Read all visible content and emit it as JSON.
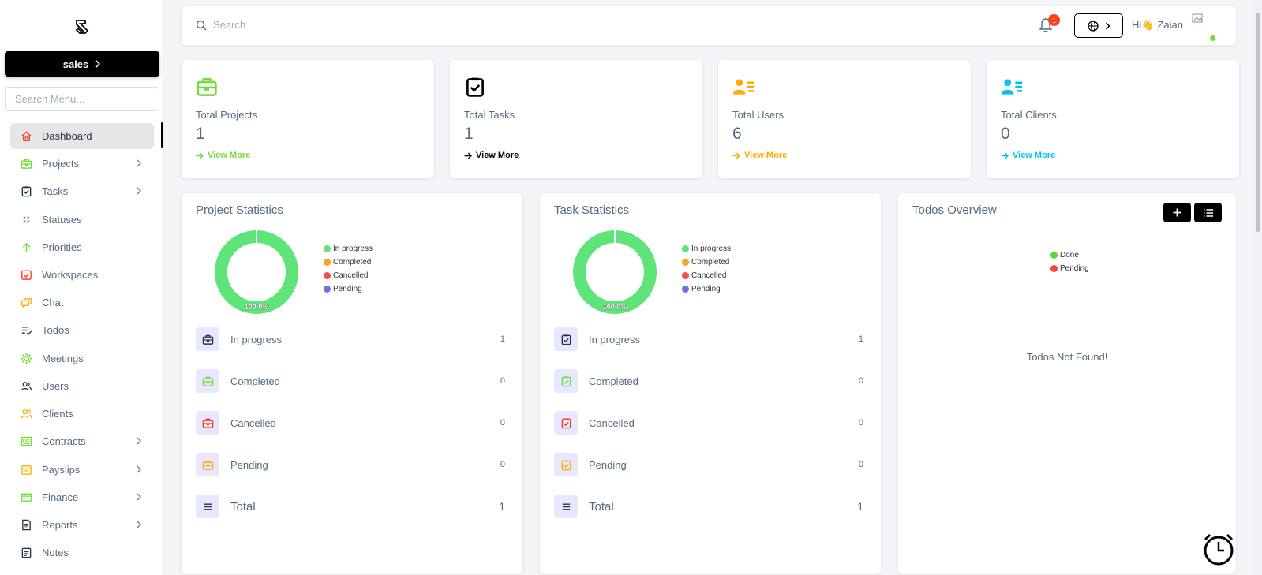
{
  "sidebar": {
    "workspace_label": "sales",
    "search_placeholder": "Search Menu...",
    "items": [
      {
        "label": "Dashboard",
        "icon": "home-icon",
        "color": "#ff3e1d",
        "active": true,
        "chevron": false
      },
      {
        "label": "Projects",
        "icon": "briefcase-icon",
        "color": "#71dd37",
        "chevron": true
      },
      {
        "label": "Tasks",
        "icon": "task-check-icon",
        "color": "#233446",
        "chevron": true
      },
      {
        "label": "Statuses",
        "icon": "grid-dots-icon",
        "color": "#8592a3",
        "chevron": false
      },
      {
        "label": "Priorities",
        "icon": "arrow-up-icon",
        "color": "#71dd37",
        "chevron": false
      },
      {
        "label": "Workspaces",
        "icon": "workspace-check-icon",
        "color": "#ff3e1d",
        "chevron": false
      },
      {
        "label": "Chat",
        "icon": "chat-icon",
        "color": "#ffab00",
        "chevron": false
      },
      {
        "label": "Todos",
        "icon": "todo-list-icon",
        "color": "#233446",
        "chevron": false
      },
      {
        "label": "Meetings",
        "icon": "meetings-icon",
        "color": "#71dd37",
        "chevron": false
      },
      {
        "label": "Users",
        "icon": "users-icon",
        "color": "#233446",
        "chevron": false
      },
      {
        "label": "Clients",
        "icon": "clients-icon",
        "color": "#ffab00",
        "chevron": false
      },
      {
        "label": "Contracts",
        "icon": "contract-icon",
        "color": "#71dd37",
        "chevron": true
      },
      {
        "label": "Payslips",
        "icon": "payslip-icon",
        "color": "#ffab00",
        "chevron": true
      },
      {
        "label": "Finance",
        "icon": "finance-icon",
        "color": "#71dd37",
        "chevron": true
      },
      {
        "label": "Reports",
        "icon": "report-icon",
        "color": "#233446",
        "chevron": true
      },
      {
        "label": "Notes",
        "icon": "notes-icon",
        "color": "#233446",
        "chevron": false
      }
    ]
  },
  "navbar": {
    "search_placeholder": "Search",
    "notification_count": "1",
    "greeting": "Hi👋",
    "user_name": "Zaian"
  },
  "stats": [
    {
      "label": "Total Projects",
      "value": "1",
      "link": "View More",
      "color": "#71dd37",
      "icon": "briefcase-icon"
    },
    {
      "label": "Total Tasks",
      "value": "1",
      "link": "View More",
      "color": "#000000",
      "icon": "task-check-icon"
    },
    {
      "label": "Total Users",
      "value": "6",
      "link": "View More",
      "color": "#ffab00",
      "icon": "users-list-icon"
    },
    {
      "label": "Total Clients",
      "value": "0",
      "link": "View More",
      "color": "#03c3ec",
      "icon": "clients-list-icon"
    }
  ],
  "project_statistics": {
    "title": "Project Statistics",
    "donut_label": "100.0%",
    "legend": [
      {
        "name": "In progress",
        "color": "#5fe47a"
      },
      {
        "name": "Completed",
        "color": "#f5a623"
      },
      {
        "name": "Cancelled",
        "color": "#ef4f4f"
      },
      {
        "name": "Pending",
        "color": "#6c73e0"
      }
    ],
    "rows": [
      {
        "label": "In progress",
        "count": "1",
        "color": "#233446"
      },
      {
        "label": "Completed",
        "count": "0",
        "color": "#71dd37"
      },
      {
        "label": "Cancelled",
        "count": "0",
        "color": "#ff3e1d"
      },
      {
        "label": "Pending",
        "count": "0",
        "color": "#ffab00"
      },
      {
        "label": "Total",
        "count": "1",
        "color": "#233446"
      }
    ]
  },
  "task_statistics": {
    "title": "Task Statistics",
    "donut_label": "100.0%",
    "legend": [
      {
        "name": "In progress",
        "color": "#5fe47a"
      },
      {
        "name": "Completed",
        "color": "#f5a623"
      },
      {
        "name": "Cancelled",
        "color": "#ef4f4f"
      },
      {
        "name": "Pending",
        "color": "#6c73e0"
      }
    ],
    "rows": [
      {
        "label": "In progress",
        "count": "1",
        "color": "#233446"
      },
      {
        "label": "Completed",
        "count": "0",
        "color": "#71dd37"
      },
      {
        "label": "Cancelled",
        "count": "0",
        "color": "#ff3e1d"
      },
      {
        "label": "Pending",
        "count": "0",
        "color": "#ffab00"
      },
      {
        "label": "Total",
        "count": "1",
        "color": "#233446"
      }
    ]
  },
  "todos": {
    "title": "Todos Overview",
    "legend": [
      {
        "name": "Done",
        "color": "#5fd443"
      },
      {
        "name": "Pending",
        "color": "#e84b3c"
      }
    ],
    "empty_message": "Todos Not Found!"
  },
  "chart_data": [
    {
      "type": "pie",
      "title": "Project Statistics",
      "categories": [
        "In progress",
        "Completed",
        "Cancelled",
        "Pending"
      ],
      "values": [
        1,
        0,
        0,
        0
      ],
      "label": "100.0%",
      "legend": "right"
    },
    {
      "type": "pie",
      "title": "Task Statistics",
      "categories": [
        "In progress",
        "Completed",
        "Cancelled",
        "Pending"
      ],
      "values": [
        1,
        0,
        0,
        0
      ],
      "label": "100.0%",
      "legend": "right"
    }
  ]
}
